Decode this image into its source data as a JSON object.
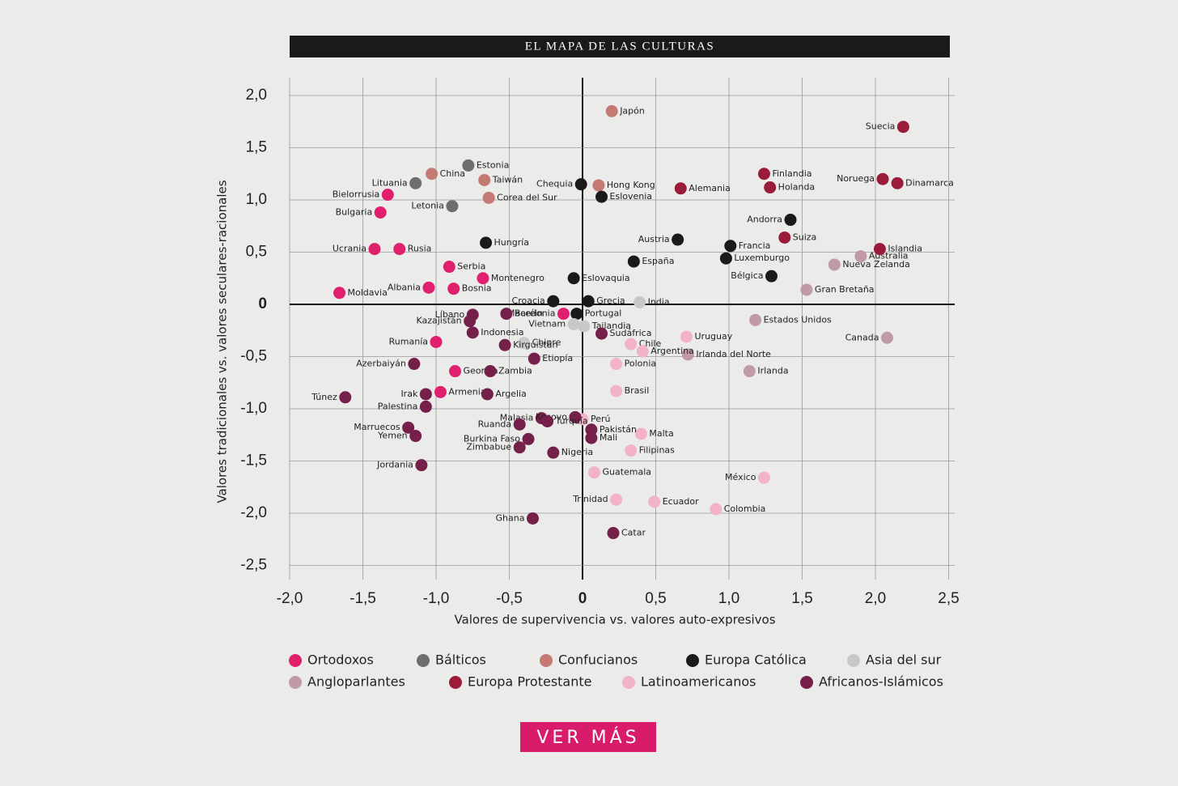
{
  "chart_data": {
    "type": "scatter",
    "title": "EL MAPA DE LAS CULTURAS",
    "x_label": "Valores de supervivencia vs. valores auto-expresivos",
    "y_label": "Valores tradicionales vs. valores seculares-racionales",
    "xlim": [
      -2.0,
      2.5
    ],
    "ylim": [
      -2.5,
      2.0
    ],
    "grid": true,
    "xticks": [
      {
        "value": -2.0,
        "label": "-2,0"
      },
      {
        "value": -1.5,
        "label": "-1,5"
      },
      {
        "value": -1.0,
        "label": "-1,0"
      },
      {
        "value": -0.5,
        "label": "-0,5"
      },
      0,
      {
        "value": 0.5,
        "label": "0,5"
      },
      {
        "value": 1.0,
        "label": "1,0"
      },
      {
        "value": 1.5,
        "label": "1,5"
      },
      {
        "value": 2.0,
        "label": "2,0"
      },
      {
        "value": 2.5,
        "label": "2,5"
      }
    ],
    "yticks": [
      {
        "value": 2.0,
        "label": "2,0"
      },
      {
        "value": 1.5,
        "label": "1,5"
      },
      {
        "value": 1.0,
        "label": "1,0"
      },
      {
        "value": 0.5,
        "label": "0,5"
      },
      0,
      {
        "value": -0.5,
        "label": "-0,5"
      },
      {
        "value": -1.0,
        "label": "-1,0"
      },
      {
        "value": -1.5,
        "label": "-1,5"
      },
      {
        "value": -2.0,
        "label": "-2,0"
      },
      {
        "value": -2.5,
        "label": "-2,5"
      }
    ],
    "series": [
      {
        "name": "Ortodoxos",
        "color": "#e0206e",
        "labels": [
          "Bielorrusia",
          "Bulgaria",
          "Ucrania",
          "Rusia",
          "Serbia",
          "Montenegro",
          "Albania",
          "Bosnia",
          "Moldavia",
          "Macedonia",
          "Rumanía",
          "Georgia",
          "Armenia"
        ],
        "x": [
          -1.33,
          -1.38,
          -1.42,
          -1.25,
          -0.91,
          -0.68,
          -1.05,
          -0.88,
          -1.66,
          -0.13,
          -1.0,
          -0.87,
          -0.97
        ],
        "values": [
          1.05,
          0.88,
          0.53,
          0.53,
          0.36,
          0.25,
          0.16,
          0.15,
          0.11,
          -0.09,
          -0.36,
          -0.64,
          -0.84
        ]
      },
      {
        "name": "Bálticos",
        "color": "#6e6e6e",
        "labels": [
          "Estonia",
          "Lituania",
          "Letonia"
        ],
        "x": [
          -0.78,
          -1.14,
          -0.89
        ],
        "values": [
          1.33,
          1.16,
          0.94
        ]
      },
      {
        "name": "Confucianos",
        "color": "#c47a72",
        "labels": [
          "China",
          "Taiwán",
          "Corea del Sur",
          "Japón",
          "Hong Kong"
        ],
        "x": [
          -1.03,
          -0.67,
          -0.64,
          0.2,
          0.11
        ],
        "values": [
          1.25,
          1.19,
          1.02,
          1.85,
          1.14
        ]
      },
      {
        "name": "Europa Católica",
        "color": "#1a1a1a",
        "labels": [
          "Chequia",
          "Eslovenia",
          "Hungría",
          "Austria",
          "Francia",
          "Luxemburgo",
          "España",
          "Andorra",
          "Bélgica",
          "Eslovaquia",
          "Croacia",
          "Grecia",
          "Portugal"
        ],
        "x": [
          -0.01,
          0.13,
          -0.66,
          0.65,
          1.01,
          0.98,
          0.35,
          1.42,
          1.29,
          -0.06,
          -0.2,
          0.04,
          -0.04
        ],
        "values": [
          1.15,
          1.03,
          0.59,
          0.62,
          0.56,
          0.44,
          0.41,
          0.81,
          0.27,
          0.25,
          0.03,
          0.03,
          -0.09
        ]
      },
      {
        "name": "Asia del sur",
        "color": "#c8c8c8",
        "labels": [
          "India",
          "Tailandia",
          "Vietnam",
          "Chipre"
        ],
        "x": [
          0.39,
          0.01,
          -0.06,
          -0.4
        ],
        "values": [
          0.02,
          -0.21,
          -0.19,
          -0.37
        ]
      },
      {
        "name": "Angloparlantes",
        "color": "#c09aa8",
        "labels": [
          "Nueva Zelanda",
          "Australia",
          "Gran Bretaña",
          "Estados Unidos",
          "Canada",
          "Irlanda del Norte",
          "Irlanda"
        ],
        "x": [
          1.72,
          1.9,
          1.53,
          1.18,
          2.08,
          0.72,
          1.14
        ],
        "values": [
          0.38,
          0.46,
          0.14,
          -0.15,
          -0.32,
          -0.48,
          -0.64
        ]
      },
      {
        "name": "Europa Protestante",
        "color": "#9b1b3a",
        "labels": [
          "Suecia",
          "Noruega",
          "Dinamarca",
          "Finlandia",
          "Holanda",
          "Alemania",
          "Suiza",
          "Islandia"
        ],
        "x": [
          2.19,
          2.05,
          2.15,
          1.24,
          1.28,
          0.67,
          1.38,
          2.03
        ],
        "values": [
          1.7,
          1.2,
          1.16,
          1.25,
          1.12,
          1.11,
          0.64,
          0.53
        ]
      },
      {
        "name": "Latinoamericanos",
        "color": "#f2b3c6",
        "labels": [
          "Uruguay",
          "Chile",
          "Argentina",
          "Polonia",
          "Brasil",
          "Perú",
          "Malta",
          "Filipinas",
          "Guatemala",
          "México",
          "Trinidad",
          "Ecuador",
          "Colombia"
        ],
        "x": [
          0.71,
          0.33,
          0.41,
          0.23,
          0.23,
          0.0,
          0.4,
          0.33,
          0.08,
          1.24,
          0.23,
          0.49,
          0.91
        ],
        "values": [
          -0.31,
          -0.38,
          -0.45,
          -0.57,
          -0.83,
          -1.1,
          -1.24,
          -1.4,
          -1.61,
          -1.66,
          -1.87,
          -1.89,
          -1.96
        ]
      },
      {
        "name": "Africanos-Islámicos",
        "color": "#74204a",
        "labels": [
          "Líbano",
          "Kazajistán",
          "Baréin",
          "Indonesia",
          "Kirguistán",
          "Sudáfrica",
          "Azerbaiyán",
          "Etiopía",
          "Zambia",
          "Argelia",
          "Irak",
          "Túnez",
          "Palestina",
          "Marruecos",
          "Yemen",
          "Jordania",
          "Malasia",
          "Kosovo",
          "Turquía",
          "Ruanda",
          "Burkina Faso",
          "Zimbabue",
          "Nigeria",
          "Pakistán",
          "Mali",
          "Ghana",
          "Catar"
        ],
        "x": [
          -0.75,
          -0.77,
          -0.52,
          -0.75,
          -0.53,
          0.13,
          -1.15,
          -0.33,
          -0.63,
          -0.65,
          -1.07,
          -1.62,
          -1.07,
          -1.19,
          -1.14,
          -1.1,
          -0.28,
          -0.05,
          -0.24,
          -0.43,
          -0.37,
          -0.43,
          -0.2,
          0.06,
          0.06,
          -0.34,
          0.21
        ],
        "values": [
          -0.1,
          -0.16,
          -0.09,
          -0.27,
          -0.39,
          -0.28,
          -0.57,
          -0.52,
          -0.64,
          -0.86,
          -0.86,
          -0.89,
          -0.98,
          -1.18,
          -1.26,
          -1.54,
          -1.09,
          -1.08,
          -1.12,
          -1.15,
          -1.29,
          -1.37,
          -1.42,
          -1.2,
          -1.28,
          -2.05,
          -2.19
        ]
      }
    ]
  },
  "button": {
    "label": "VER MÁS"
  }
}
